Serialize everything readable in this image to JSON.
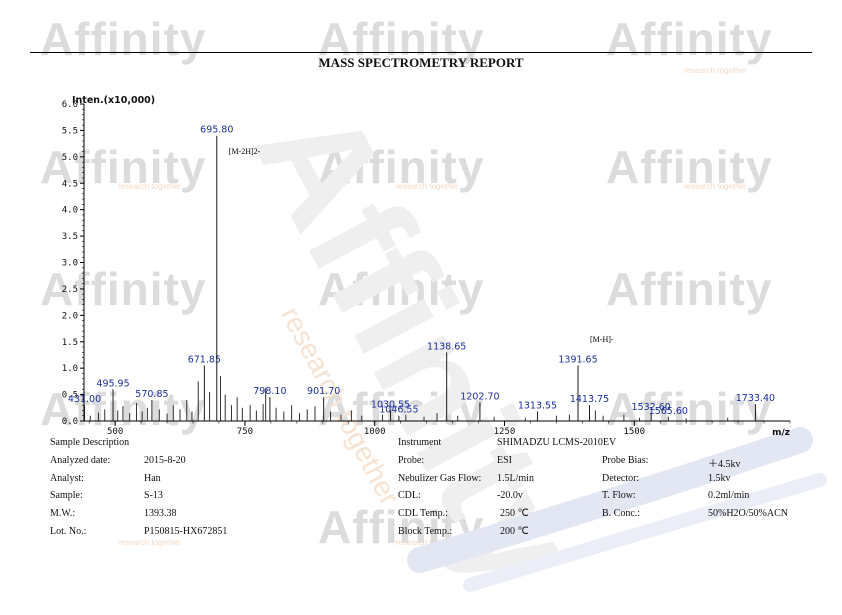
{
  "header": {
    "title": "MASS SPECTROMETRY REPORT"
  },
  "watermark": {
    "brand": "Affinity",
    "tagline": "research together"
  },
  "chart_data": {
    "type": "bar",
    "chart_kind": "mass-spectrum-stick",
    "ylabel": "Inten.(x10,000)",
    "xlabel": "m/z",
    "xlim": [
      440,
      1800
    ],
    "ylim": [
      0,
      6.0
    ],
    "xticks": [
      500,
      750,
      1000,
      1250,
      1500
    ],
    "yticks": [
      0.0,
      0.5,
      1.0,
      1.5,
      2.0,
      2.5,
      3.0,
      3.5,
      4.0,
      4.5,
      5.0,
      5.5,
      6.0
    ],
    "grid": false,
    "colors": {
      "peak": "#1a1a1a",
      "label": "#1c2f9c",
      "annotation": "#000000",
      "axis": "#000000"
    },
    "labeled_peaks": [
      {
        "mz": 431.0,
        "label": "431.00",
        "intensity": 0.3
      },
      {
        "mz": 495.95,
        "label": "495.95",
        "intensity": 0.6
      },
      {
        "mz": 570.85,
        "label": "570.85",
        "intensity": 0.4
      },
      {
        "mz": 671.85,
        "label": "671.85",
        "intensity": 1.05
      },
      {
        "mz": 695.8,
        "label": "695.80",
        "intensity": 5.4
      },
      {
        "mz": 798.1,
        "label": "798.10",
        "intensity": 0.45
      },
      {
        "mz": 901.7,
        "label": "901.70",
        "intensity": 0.45
      },
      {
        "mz": 1030.55,
        "label": "1030.55",
        "intensity": 0.2
      },
      {
        "mz": 1046.55,
        "label": "1046.55",
        "intensity": 0.1
      },
      {
        "mz": 1138.65,
        "label": "1138.65",
        "intensity": 1.3
      },
      {
        "mz": 1202.7,
        "label": "1202.70",
        "intensity": 0.35
      },
      {
        "mz": 1313.55,
        "label": "1313.55",
        "intensity": 0.18
      },
      {
        "mz": 1391.65,
        "label": "1391.65",
        "intensity": 1.05
      },
      {
        "mz": 1413.75,
        "label": "1413.75",
        "intensity": 0.3
      },
      {
        "mz": 1532.6,
        "label": "1532.60",
        "intensity": 0.15
      },
      {
        "mz": 1565.6,
        "label": "1565.60",
        "intensity": 0.08
      },
      {
        "mz": 1733.4,
        "label": "1733.40",
        "intensity": 0.32
      }
    ],
    "annotations": [
      {
        "mz": 695.8,
        "text": "[M-2H]2-",
        "intensity": 5.05
      },
      {
        "mz": 1391.65,
        "text": "[M-H]-",
        "intensity": 1.5
      }
    ],
    "minor_peaks": [
      {
        "mz": 452,
        "intensity": 0.1
      },
      {
        "mz": 468,
        "intensity": 0.16
      },
      {
        "mz": 480,
        "intensity": 0.22
      },
      {
        "mz": 505,
        "intensity": 0.2
      },
      {
        "mz": 515,
        "intensity": 0.28
      },
      {
        "mz": 528,
        "intensity": 0.15
      },
      {
        "mz": 541,
        "intensity": 0.34
      },
      {
        "mz": 552,
        "intensity": 0.18
      },
      {
        "mz": 562,
        "intensity": 0.25
      },
      {
        "mz": 585,
        "intensity": 0.22
      },
      {
        "mz": 600,
        "intensity": 0.14
      },
      {
        "mz": 612,
        "intensity": 0.3
      },
      {
        "mz": 625,
        "intensity": 0.22
      },
      {
        "mz": 638,
        "intensity": 0.4
      },
      {
        "mz": 648,
        "intensity": 0.18
      },
      {
        "mz": 660,
        "intensity": 0.75
      },
      {
        "mz": 682,
        "intensity": 0.55
      },
      {
        "mz": 703,
        "intensity": 0.85
      },
      {
        "mz": 712,
        "intensity": 0.5
      },
      {
        "mz": 724,
        "intensity": 0.3
      },
      {
        "mz": 735,
        "intensity": 0.45
      },
      {
        "mz": 745,
        "intensity": 0.25
      },
      {
        "mz": 760,
        "intensity": 0.3
      },
      {
        "mz": 772,
        "intensity": 0.2
      },
      {
        "mz": 785,
        "intensity": 0.32
      },
      {
        "mz": 790,
        "intensity": 0.62
      },
      {
        "mz": 810,
        "intensity": 0.25
      },
      {
        "mz": 825,
        "intensity": 0.18
      },
      {
        "mz": 840,
        "intensity": 0.3
      },
      {
        "mz": 855,
        "intensity": 0.15
      },
      {
        "mz": 870,
        "intensity": 0.22
      },
      {
        "mz": 885,
        "intensity": 0.28
      },
      {
        "mz": 915,
        "intensity": 0.18
      },
      {
        "mz": 935,
        "intensity": 0.12
      },
      {
        "mz": 955,
        "intensity": 0.2
      },
      {
        "mz": 975,
        "intensity": 0.1
      },
      {
        "mz": 1015,
        "intensity": 0.12
      },
      {
        "mz": 1060,
        "intensity": 0.12
      },
      {
        "mz": 1095,
        "intensity": 0.08
      },
      {
        "mz": 1120,
        "intensity": 0.15
      },
      {
        "mz": 1160,
        "intensity": 0.1
      },
      {
        "mz": 1230,
        "intensity": 0.08
      },
      {
        "mz": 1290,
        "intensity": 0.06
      },
      {
        "mz": 1350,
        "intensity": 0.1
      },
      {
        "mz": 1375,
        "intensity": 0.12
      },
      {
        "mz": 1425,
        "intensity": 0.2
      },
      {
        "mz": 1440,
        "intensity": 0.1
      },
      {
        "mz": 1480,
        "intensity": 0.12
      },
      {
        "mz": 1510,
        "intensity": 0.06
      },
      {
        "mz": 1600,
        "intensity": 0.05
      },
      {
        "mz": 1680,
        "intensity": 0.06
      }
    ]
  },
  "sample_info": {
    "rows": [
      {
        "label": "Sample Description",
        "value": ""
      },
      {
        "label": "Analyzed date:",
        "value": "2015-8-20"
      },
      {
        "label": "Analyst:",
        "value": "Han"
      },
      {
        "label": "Sample:",
        "value": "S-13"
      },
      {
        "label": "M.W.:",
        "value": "1393.38"
      },
      {
        "label": "Lot. No.:",
        "value": "P150815-HX672851"
      }
    ]
  },
  "instrument_info": {
    "rows": [
      {
        "label": "Instrument",
        "value": "SHIMADZU LCMS-2010EV",
        "label2": "",
        "value2": ""
      },
      {
        "label": "Probe:",
        "value": "ESI",
        "label2": "Probe Bias:",
        "value2": "＋4.5kv"
      },
      {
        "label": "Nebulizer Gas Flow:",
        "value": "1.5L/min",
        "label2": "Detector:",
        "value2": "1.5kv"
      },
      {
        "label": "CDL:",
        "value": "-20.0v",
        "label2": "T. Flow:",
        "value2": "0.2ml/min"
      },
      {
        "label": "CDL Temp.:",
        "value": "250 ℃",
        "label2": "B. Conc.:",
        "value2": "50%H2O/50%ACN"
      },
      {
        "label": "Block Temp.:",
        "value": "200 ℃",
        "label2": "",
        "value2": ""
      }
    ]
  }
}
